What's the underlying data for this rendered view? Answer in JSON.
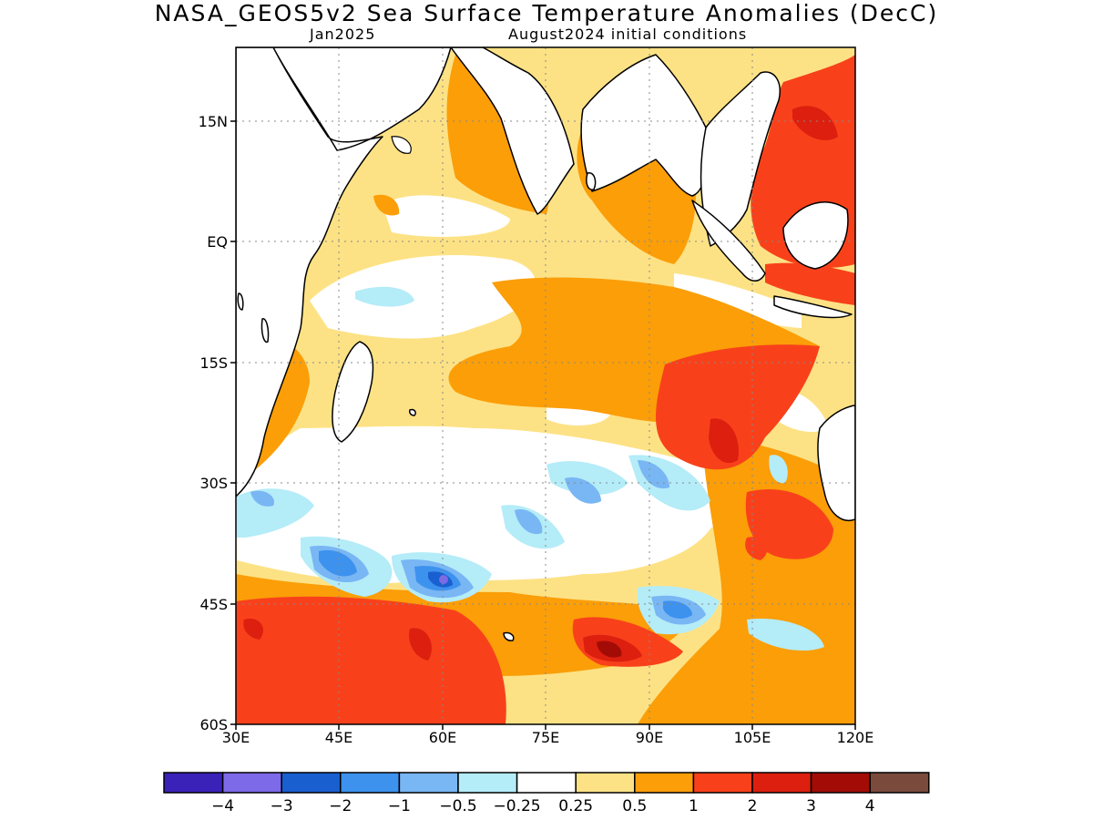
{
  "title": "NASA_GEOS5v2 Sea Surface Temperature Anomalies (DecC)",
  "forecast_month": "Jan2025",
  "initial_conditions": "August2024 initial conditions",
  "axes": {
    "lat_labels": [
      "15N",
      "EQ",
      "15S",
      "30S",
      "45S",
      "60S"
    ],
    "lon_labels": [
      "30E",
      "45E",
      "60E",
      "75E",
      "90E",
      "105E",
      "120E"
    ]
  },
  "colorbar": {
    "colors": [
      "#3a22b8",
      "#7c6ae8",
      "#1a5fd0",
      "#3d92ee",
      "#79b6f4",
      "#b4ecf8",
      "#ffffff",
      "#fde285",
      "#fb9e08",
      "#f8411b",
      "#dc1f0e",
      "#a30c06",
      "#7a4a3c"
    ],
    "labels": [
      "−4",
      "−3",
      "−2",
      "−1",
      "−0.5",
      "−0.25",
      "0.25",
      "0.5",
      "1",
      "2",
      "3",
      "4"
    ]
  }
}
